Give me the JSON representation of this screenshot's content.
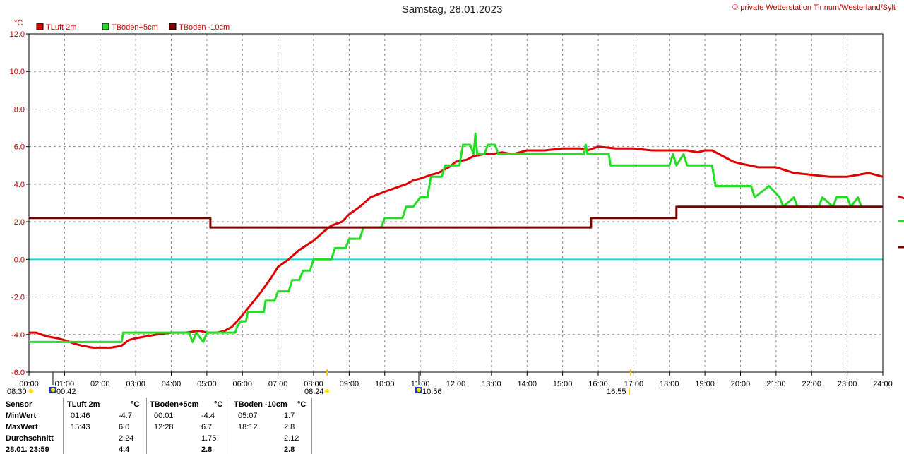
{
  "title": "Samstag, 28.01.2023",
  "credit": "© private Wetterstation Tinnum/Westerland/Sylt",
  "unit": "°C",
  "chart_data": {
    "type": "line",
    "xlim": [
      0,
      24
    ],
    "ylim": [
      -6,
      12
    ],
    "x_ticks": [
      "00:00",
      "01:00",
      "02:00",
      "03:00",
      "04:00",
      "05:00",
      "06:00",
      "07:00",
      "08:00",
      "09:00",
      "10:00",
      "11:00",
      "12:00",
      "13:00",
      "14:00",
      "15:00",
      "16:00",
      "17:00",
      "18:00",
      "19:00",
      "20:00",
      "21:00",
      "22:00",
      "23:00",
      "24:00"
    ],
    "y_ticks": [
      "-6.0",
      "-4.0",
      "-2.0",
      "0.0",
      "2.0",
      "4.0",
      "6.0",
      "8.0",
      "10.0",
      "12.0"
    ],
    "grid": true,
    "legend_position": "top-left",
    "zero_line_color": "#00e0e0",
    "series": [
      {
        "name": "TLuft 2m",
        "color": "#e00000",
        "x": [
          0,
          0.2,
          0.5,
          0.8,
          1.0,
          1.3,
          1.5,
          1.8,
          2.0,
          2.3,
          2.6,
          2.8,
          3.0,
          3.3,
          3.6,
          4.0,
          4.4,
          4.8,
          5.0,
          5.3,
          5.5,
          5.7,
          5.9,
          6.2,
          6.5,
          6.8,
          7.0,
          7.3,
          7.6,
          8.0,
          8.3,
          8.5,
          8.8,
          9.0,
          9.3,
          9.6,
          10.0,
          10.3,
          10.6,
          10.8,
          11.0,
          11.3,
          11.5,
          11.8,
          12.0,
          12.3,
          12.5,
          12.8,
          13.0,
          13.3,
          13.6,
          14.0,
          14.5,
          15.0,
          15.5,
          15.7,
          16.0,
          16.5,
          17.0,
          17.5,
          18.0,
          18.5,
          18.8,
          19.0,
          19.2,
          19.5,
          19.8,
          20.0,
          20.5,
          21.0,
          21.5,
          22.0,
          22.5,
          23.0,
          23.3,
          23.6,
          24.0
        ],
        "y": [
          -3.9,
          -3.9,
          -4.1,
          -4.2,
          -4.3,
          -4.5,
          -4.6,
          -4.7,
          -4.7,
          -4.7,
          -4.6,
          -4.3,
          -4.2,
          -4.1,
          -4.0,
          -3.9,
          -3.9,
          -3.8,
          -3.9,
          -3.9,
          -3.8,
          -3.6,
          -3.2,
          -2.5,
          -1.8,
          -1.0,
          -0.4,
          0.0,
          0.5,
          1.0,
          1.5,
          1.8,
          2.0,
          2.4,
          2.8,
          3.3,
          3.6,
          3.8,
          4.0,
          4.2,
          4.3,
          4.5,
          4.6,
          4.9,
          5.2,
          5.3,
          5.5,
          5.6,
          5.6,
          5.7,
          5.6,
          5.8,
          5.8,
          5.9,
          5.9,
          5.8,
          6.0,
          5.9,
          5.9,
          5.8,
          5.8,
          5.8,
          5.7,
          5.8,
          5.8,
          5.5,
          5.2,
          5.1,
          4.9,
          4.9,
          4.6,
          4.5,
          4.4,
          4.4,
          4.5,
          4.6,
          4.4
        ]
      },
      {
        "name": "TBoden+5cm",
        "color": "#22dd22",
        "x": [
          0,
          2.6,
          2.65,
          4.5,
          4.6,
          4.7,
          4.9,
          5.0,
          5.1,
          5.2,
          5.8,
          5.85,
          5.95,
          6.1,
          6.15,
          6.3,
          6.4,
          6.6,
          6.65,
          6.9,
          7.0,
          7.3,
          7.4,
          7.6,
          7.7,
          7.9,
          8.0,
          8.5,
          8.6,
          8.9,
          9.0,
          9.3,
          9.4,
          9.9,
          10.0,
          10.5,
          10.6,
          10.8,
          11.0,
          11.2,
          11.3,
          11.6,
          11.7,
          12.1,
          12.2,
          12.4,
          12.5,
          12.55,
          12.6,
          12.8,
          12.9,
          13.1,
          13.2,
          15.6,
          15.65,
          15.7,
          16.3,
          16.35,
          18.0,
          18.1,
          18.2,
          18.4,
          18.5,
          19.2,
          19.3,
          20.3,
          20.4,
          20.8,
          21.1,
          21.2,
          21.5,
          21.6,
          22.2,
          22.3,
          22.6,
          22.7,
          23.0,
          23.1,
          23.3,
          23.4
        ],
        "y": [
          -4.4,
          -4.4,
          -3.9,
          -3.9,
          -4.4,
          -3.9,
          -4.4,
          -3.9,
          -3.9,
          -3.9,
          -3.9,
          -3.6,
          -3.3,
          -3.3,
          -2.8,
          -2.8,
          -2.8,
          -2.8,
          -2.2,
          -2.2,
          -1.7,
          -1.7,
          -1.1,
          -1.1,
          -0.6,
          -0.6,
          0.0,
          0.0,
          0.6,
          0.6,
          1.1,
          1.1,
          1.7,
          1.7,
          2.2,
          2.2,
          2.8,
          2.8,
          3.3,
          3.3,
          4.4,
          4.4,
          5.0,
          5.0,
          6.1,
          6.1,
          5.6,
          6.7,
          5.6,
          5.6,
          6.1,
          6.1,
          5.6,
          5.6,
          6.1,
          5.6,
          5.6,
          5.0,
          5.0,
          5.6,
          5.0,
          5.6,
          5.0,
          5.0,
          3.9,
          3.9,
          3.3,
          3.9,
          3.3,
          2.8,
          3.3,
          2.8,
          2.8,
          3.3,
          2.8,
          3.3,
          3.3,
          2.8,
          3.3,
          2.8
        ]
      },
      {
        "name": "TBoden -10cm",
        "color": "#7a0000",
        "x": [
          0,
          5.1,
          5.1,
          15.8,
          15.8,
          18.2,
          18.2,
          24.0
        ],
        "y": [
          2.2,
          2.2,
          1.7,
          1.7,
          2.2,
          2.2,
          2.8,
          2.8
        ]
      }
    ]
  },
  "markers": {
    "left_time": "08:30",
    "moon_icon_1": "moon-icon",
    "moon_rise": "00:42",
    "sunrise": "08:24",
    "moon_icon_2": "moon-icon",
    "moon_set": "10:56",
    "sunset": "16:55"
  },
  "stats": {
    "headers": [
      "Sensor",
      "TLuft 2m",
      "°C",
      "TBoden+5cm",
      "°C",
      "TBoden -10cm",
      "°C"
    ],
    "rows": [
      {
        "label": "MinWert",
        "t1": "01:46",
        "v1": "-4.7",
        "t2": "00:01",
        "v2": "-4.4",
        "t3": "05:07",
        "v3": "1.7"
      },
      {
        "label": "MaxWert",
        "t1": "15:43",
        "v1": "6.0",
        "t2": "12:28",
        "v2": "6.7",
        "t3": "18:12",
        "v3": "2.8"
      },
      {
        "label": "Durchschnitt",
        "t1": "",
        "v1": "2.24",
        "t2": "",
        "v2": "1.75",
        "t3": "",
        "v3": "2.12"
      },
      {
        "label": "28.01. 23:59",
        "t1": "",
        "v1": "4.4",
        "t2": "",
        "v2": "2.8",
        "t3": "",
        "v3": "2.8"
      }
    ]
  }
}
